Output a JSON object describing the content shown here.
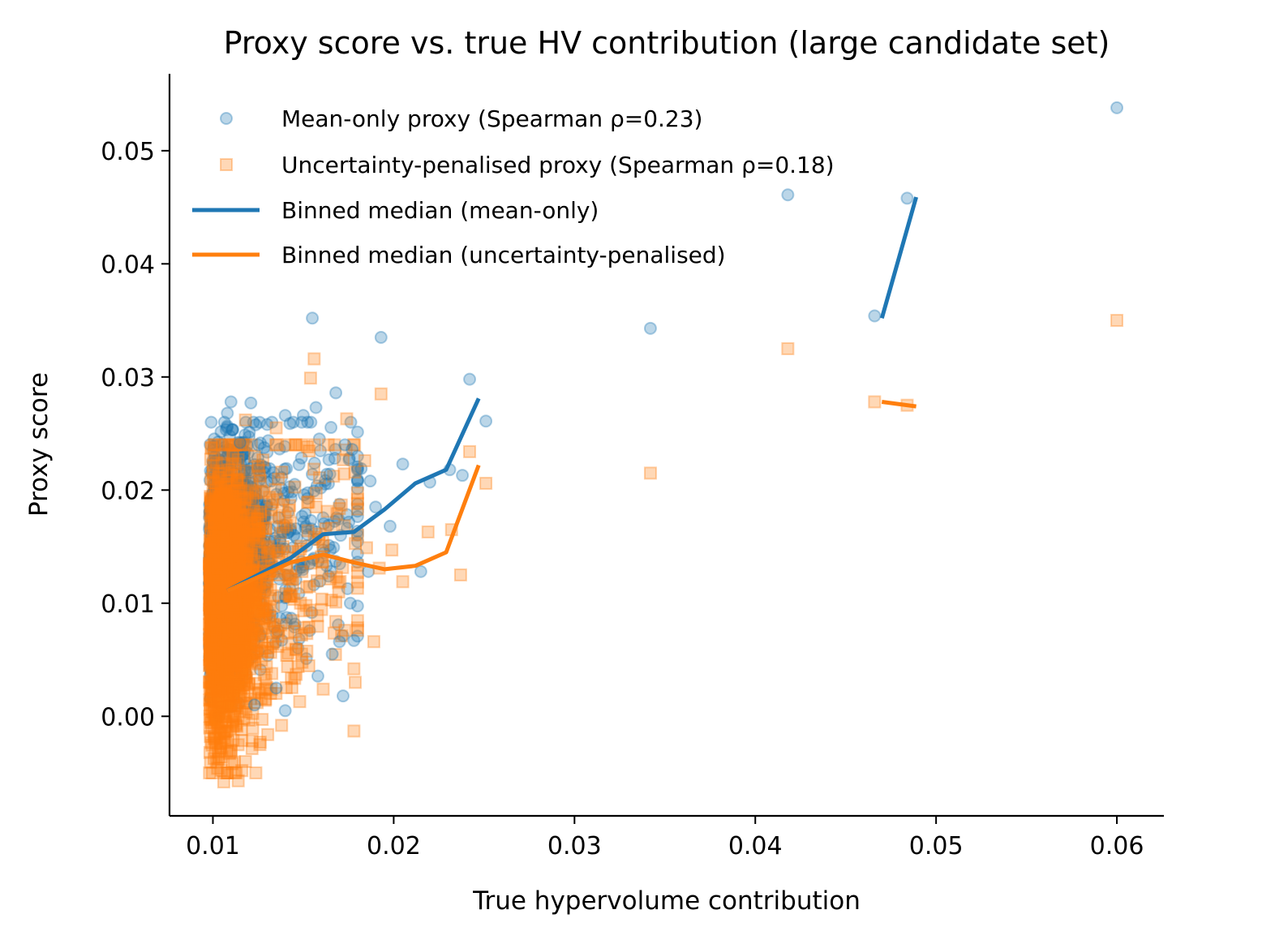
{
  "chart_data": {
    "type": "scatter",
    "title": "Proxy score vs. true HV contribution (large candidate set)",
    "xlabel": "True hypervolume contribution",
    "ylabel": "Proxy score",
    "xlim": [
      0.0076,
      0.0626
    ],
    "ylim": [
      -0.0088,
      0.0568
    ],
    "x_ticks": [
      0.01,
      0.02,
      0.03,
      0.04,
      0.05,
      0.06
    ],
    "x_tick_labels": [
      "0.01",
      "0.02",
      "0.03",
      "0.04",
      "0.05",
      "0.06"
    ],
    "y_ticks": [
      0.0,
      0.01,
      0.02,
      0.03,
      0.04,
      0.05
    ],
    "y_tick_labels": [
      "0.00",
      "0.01",
      "0.02",
      "0.03",
      "0.04",
      "0.05"
    ],
    "grid": false,
    "legend_position": "upper-left",
    "series": [
      {
        "name": "Mean-only proxy (Spearman ρ=0.23)",
        "kind": "scatter",
        "marker": "circle",
        "color": "#1f77b4",
        "alpha": 0.3,
        "points": [
          [
            0.0155,
            0.0352
          ],
          [
            0.0193,
            0.0335
          ],
          [
            0.0342,
            0.0343
          ],
          [
            0.0418,
            0.0461
          ],
          [
            0.0484,
            0.0458
          ],
          [
            0.0466,
            0.0354
          ],
          [
            0.06,
            0.0538
          ],
          [
            0.0242,
            0.0298
          ],
          [
            0.0251,
            0.0261
          ],
          [
            0.0168,
            0.0286
          ],
          [
            0.011,
            0.0278
          ],
          [
            0.0121,
            0.0277
          ],
          [
            0.0108,
            0.0268
          ],
          [
            0.013,
            0.0258
          ],
          [
            0.014,
            0.0266
          ],
          [
            0.015,
            0.0266
          ],
          [
            0.0157,
            0.0273
          ],
          [
            0.0173,
            0.024
          ],
          [
            0.0177,
            0.0236
          ],
          [
            0.0163,
            0.0214
          ],
          [
            0.0182,
            0.0219
          ],
          [
            0.019,
            0.0185
          ],
          [
            0.0187,
            0.0208
          ],
          [
            0.0205,
            0.0223
          ],
          [
            0.022,
            0.0207
          ],
          [
            0.0231,
            0.0218
          ],
          [
            0.0238,
            0.0213
          ],
          [
            0.0198,
            0.0168
          ],
          [
            0.0215,
            0.0128
          ],
          [
            0.0186,
            0.0128
          ],
          [
            0.0176,
            0.01
          ],
          [
            0.017,
            0.0066
          ],
          [
            0.0178,
            0.0067
          ],
          [
            0.0172,
            0.0018
          ],
          [
            0.0166,
            0.0055
          ],
          [
            0.014,
            0.0005
          ],
          [
            0.0135,
            0.0025
          ],
          [
            0.0123,
            0.001
          ],
          [
            0.0115,
            0.0242
          ],
          [
            0.0125,
            0.024
          ]
        ]
      },
      {
        "name": "Uncertainty-penalised proxy (Spearman ρ=0.18)",
        "kind": "scatter",
        "marker": "square",
        "color": "#ff7f0e",
        "alpha": 0.3,
        "points": [
          [
            0.0156,
            0.0316
          ],
          [
            0.0154,
            0.0299
          ],
          [
            0.0193,
            0.0285
          ],
          [
            0.0418,
            0.0325
          ],
          [
            0.0342,
            0.0215
          ],
          [
            0.0466,
            0.0278
          ],
          [
            0.0484,
            0.0275
          ],
          [
            0.06,
            0.035
          ],
          [
            0.0242,
            0.0234
          ],
          [
            0.0251,
            0.0206
          ],
          [
            0.0219,
            0.0163
          ],
          [
            0.0232,
            0.0165
          ],
          [
            0.0237,
            0.0125
          ],
          [
            0.0205,
            0.0119
          ],
          [
            0.0199,
            0.0147
          ],
          [
            0.0192,
            0.0131
          ],
          [
            0.0185,
            0.0149
          ],
          [
            0.0189,
            0.0066
          ],
          [
            0.0178,
            0.0042
          ],
          [
            0.0184,
            0.0226
          ],
          [
            0.0174,
            0.0263
          ],
          [
            0.0118,
            0.0262
          ],
          [
            0.0135,
            0.0255
          ],
          [
            0.0178,
            -0.0013
          ],
          [
            0.0161,
            0.0024
          ],
          [
            0.0148,
            0.0013
          ],
          [
            0.0138,
            -0.0008
          ],
          [
            0.0126,
            -0.0025
          ],
          [
            0.0118,
            -0.004
          ],
          [
            0.0114,
            -0.0057
          ],
          [
            0.0106,
            -0.0058
          ],
          [
            0.0103,
            -0.0038
          ],
          [
            0.0116,
            -0.0048
          ],
          [
            0.011,
            -0.003
          ],
          [
            0.0173,
            0.0076
          ],
          [
            0.0168,
            0.0101
          ]
        ]
      },
      {
        "name": "Binned median (mean-only)",
        "kind": "line",
        "color": "#1f77b4",
        "segments": [
          [
            [
              0.0108,
              0.0111
            ],
            [
              0.0125,
              0.0125
            ],
            [
              0.0143,
              0.014
            ],
            [
              0.0161,
              0.0161
            ],
            [
              0.0178,
              0.0163
            ],
            [
              0.0195,
              0.0183
            ],
            [
              0.0212,
              0.0206
            ],
            [
              0.0229,
              0.0218
            ],
            [
              0.0247,
              0.0281
            ]
          ],
          [
            [
              0.047,
              0.0352
            ],
            [
              0.0489,
              0.0459
            ]
          ]
        ]
      },
      {
        "name": "Binned median (uncertainty-penalised)",
        "kind": "line",
        "color": "#ff7f0e",
        "segments": [
          [
            [
              0.0108,
              0.0111
            ],
            [
              0.0125,
              0.0123
            ],
            [
              0.0143,
              0.0136
            ],
            [
              0.0161,
              0.0143
            ],
            [
              0.0178,
              0.0136
            ],
            [
              0.0195,
              0.013
            ],
            [
              0.0212,
              0.0133
            ],
            [
              0.0229,
              0.0145
            ],
            [
              0.0247,
              0.0222
            ]
          ],
          [
            [
              0.047,
              0.0278
            ],
            [
              0.0489,
              0.0274
            ]
          ]
        ]
      }
    ],
    "dense_cluster": {
      "x_range": [
        0.0098,
        0.018
      ],
      "y_mean_only": [
        0.0,
        0.026
      ],
      "y_penalised": [
        -0.005,
        0.024
      ],
      "approx_points_per_series": 2000
    }
  }
}
